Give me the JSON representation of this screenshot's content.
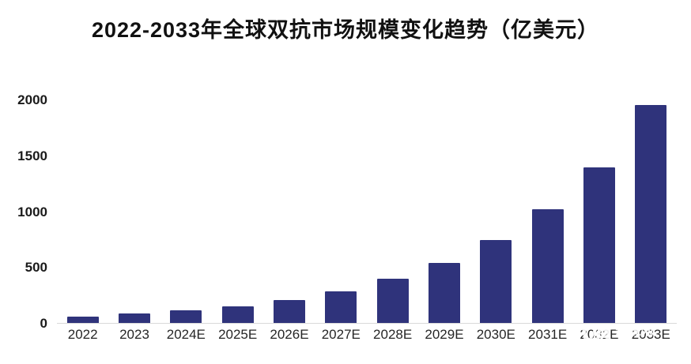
{
  "title": "2022-2033年全球双抗市场规模变化趋势（亿美元）",
  "watermark": {
    "logo": "VB",
    "line1": "动脉网",
    "line2": "VBDATA.CN"
  },
  "chart_data": {
    "type": "bar",
    "title": "2022-2033年全球双抗市场规模变化趋势（亿美元）",
    "categories": [
      "2022",
      "2023",
      "2024E",
      "2025E",
      "2026E",
      "2027E",
      "2028E",
      "2029E",
      "2030E",
      "2031E",
      "2032E",
      "2033E"
    ],
    "values": [
      58,
      85,
      112,
      148,
      208,
      285,
      395,
      540,
      745,
      1020,
      1400,
      1960
    ],
    "xlabel": "",
    "ylabel": "",
    "ylim": [
      0,
      2000
    ],
    "yticks": [
      0,
      500,
      1000,
      1500,
      2000
    ],
    "bar_color": "#2F337B",
    "grid": false,
    "legend": false,
    "background": "#FFFFFF"
  }
}
